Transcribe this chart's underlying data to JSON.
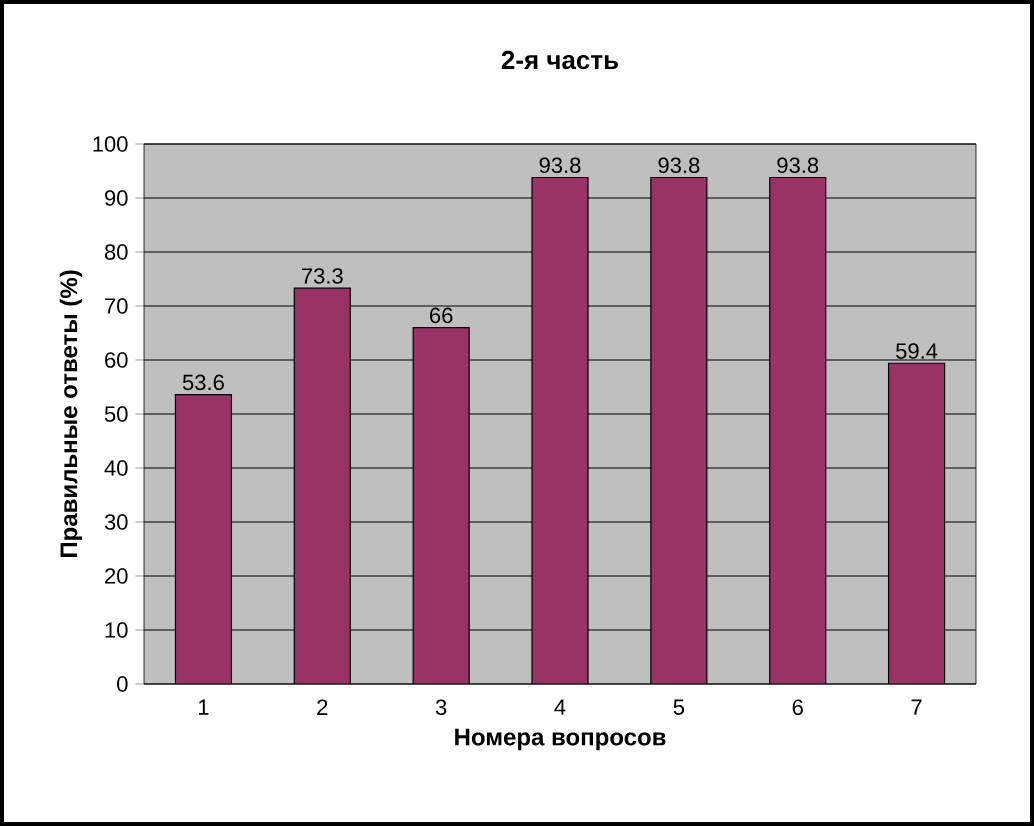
{
  "chart_data": {
    "type": "bar",
    "title": "2-я часть",
    "xlabel": "Номера вопросов",
    "ylabel": "Правильные ответы (%)",
    "categories": [
      "1",
      "2",
      "3",
      "4",
      "5",
      "6",
      "7"
    ],
    "values": [
      53.6,
      73.3,
      66,
      93.8,
      93.8,
      93.8,
      59.4
    ],
    "color": "#993366",
    "ylim": [
      0,
      100
    ],
    "yticks": [
      0,
      10,
      20,
      30,
      40,
      50,
      60,
      70,
      80,
      90,
      100
    ],
    "grid": "y",
    "data_labels": true
  }
}
